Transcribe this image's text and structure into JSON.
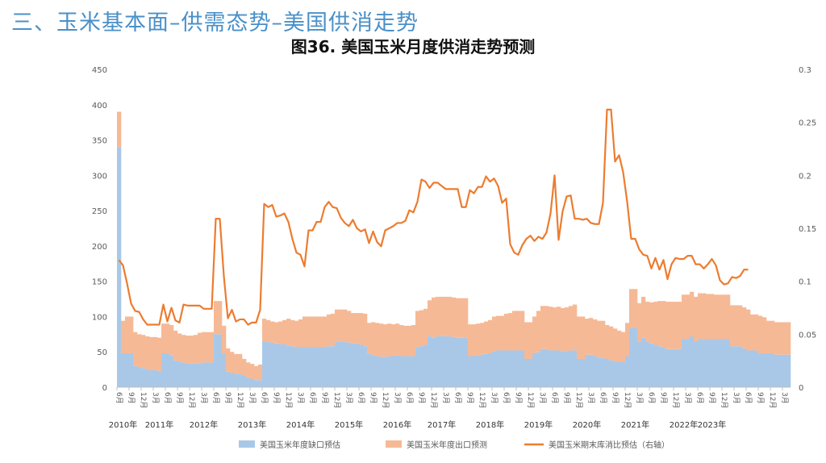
{
  "header": {
    "section_title": "三、玉米基本面–供需态势–美国供消走势"
  },
  "chart_data": {
    "type": "bar",
    "title": "图36. 美国玉米月度供消走势预测",
    "stacked": true,
    "y_left": {
      "ticks": [
        "0",
        "50",
        "100",
        "150",
        "200",
        "250",
        "300",
        "350",
        "400",
        "450"
      ],
      "ylim": [
        0,
        450
      ]
    },
    "y_right": {
      "ticks": [
        "0",
        "0.05",
        "0.1",
        "0.15",
        "0.2",
        "0.25",
        "0.3"
      ],
      "ylim": [
        0,
        0.3
      ]
    },
    "grid": false,
    "legend_position": "bottom",
    "colors": {
      "deficit": "#a9c8e8",
      "export": "#f6b995",
      "ratio": "#ec7c30"
    },
    "x_start": "2010-06",
    "x_month_ticks": [
      "6月",
      "9月",
      "12月",
      "3月",
      "6月",
      "9月",
      "12月",
      "3月",
      "6月",
      "9月",
      "12月",
      "3月",
      "6月",
      "9月",
      "12月",
      "3月",
      "6月",
      "9月",
      "12月",
      "3月",
      "6月",
      "9月",
      "12月",
      "3月",
      "6月",
      "9月",
      "12月",
      "3月",
      "6月",
      "9月",
      "12月",
      "3月",
      "6月",
      "9月",
      "12月",
      "3月",
      "6月",
      "9月",
      "12月",
      "3月",
      "6月",
      "9月",
      "12月",
      "3月",
      "6月",
      "9月",
      "12月",
      "3月",
      "6月",
      "9月",
      "12月",
      "3月",
      "6月",
      "9月",
      "12月",
      "3月"
    ],
    "year_labels": [
      {
        "label": "2010年",
        "index": 1
      },
      {
        "label": "2011年",
        "index": 10
      },
      {
        "label": "2012年",
        "index": 21
      },
      {
        "label": "2013年",
        "index": 33
      },
      {
        "label": "2014年",
        "index": 45
      },
      {
        "label": "2015年",
        "index": 57
      },
      {
        "label": "2016年",
        "index": 69
      },
      {
        "label": "2017年",
        "index": 80
      },
      {
        "label": "2018年",
        "index": 92
      },
      {
        "label": "2019年",
        "index": 104
      },
      {
        "label": "2020年",
        "index": 116
      },
      {
        "label": "2021年",
        "index": 128
      },
      {
        "label": "2022年",
        "index": 140
      },
      {
        "label": "2023年",
        "index": 147
      }
    ],
    "series": [
      {
        "name": "美国玉米年度缺口预估",
        "axis": "left",
        "values": [
          340,
          48,
          48,
          48,
          30,
          28,
          27,
          25,
          24,
          24,
          23,
          48,
          48,
          45,
          38,
          36,
          35,
          34,
          34,
          34,
          34,
          35,
          35,
          35,
          75,
          75,
          48,
          22,
          20,
          19,
          19,
          16,
          14,
          12,
          10,
          10,
          65,
          64,
          63,
          62,
          61,
          61,
          59,
          58,
          57,
          57,
          57,
          57,
          57,
          57,
          57,
          57,
          58,
          58,
          64,
          64,
          64,
          63,
          62,
          62,
          60,
          58,
          47,
          45,
          44,
          43,
          43,
          44,
          44,
          45,
          44,
          44,
          44,
          44,
          56,
          58,
          60,
          72,
          70,
          72,
          72,
          72,
          72,
          71,
          70,
          70,
          70,
          44,
          44,
          45,
          46,
          47,
          48,
          51,
          52,
          52,
          52,
          52,
          52,
          52,
          52,
          40,
          40,
          48,
          50,
          54,
          54,
          52,
          52,
          52,
          51,
          51,
          52,
          52,
          40,
          40,
          46,
          46,
          44,
          42,
          42,
          40,
          38,
          36,
          36,
          36,
          44,
          84,
          84,
          64,
          70,
          64,
          62,
          60,
          58,
          56,
          54,
          54,
          54,
          54,
          68,
          68,
          72,
          65,
          68,
          68,
          68,
          68,
          68,
          68,
          68,
          68,
          58,
          58,
          58,
          55,
          52,
          52,
          52,
          48,
          48,
          48,
          48,
          46,
          46,
          46,
          46
        ]
      },
      {
        "name": "美国玉米年度出口预测",
        "axis": "left",
        "values": [
          50,
          46,
          52,
          52,
          48,
          47,
          47,
          47,
          47,
          47,
          47,
          42,
          42,
          43,
          42,
          40,
          39,
          39,
          39,
          40,
          43,
          43,
          43,
          43,
          47,
          47,
          39,
          33,
          30,
          28,
          28,
          24,
          21,
          21,
          20,
          22,
          32,
          31,
          30,
          30,
          32,
          34,
          38,
          37,
          37,
          39,
          43,
          43,
          43,
          43,
          43,
          43,
          45,
          46,
          46,
          46,
          46,
          45,
          43,
          43,
          45,
          46,
          44,
          47,
          47,
          47,
          46,
          46,
          45,
          45,
          44,
          43,
          43,
          44,
          52,
          51,
          51,
          51,
          57,
          56,
          56,
          56,
          56,
          56,
          56,
          56,
          56,
          45,
          45,
          45,
          45,
          46,
          47,
          49,
          49,
          49,
          52,
          53,
          56,
          56,
          56,
          52,
          52,
          52,
          58,
          61,
          61,
          62,
          61,
          62,
          61,
          62,
          63,
          65,
          60,
          60,
          51,
          52,
          52,
          52,
          52,
          48,
          48,
          47,
          44,
          42,
          47,
          55,
          55,
          55,
          58,
          57,
          58,
          61,
          64,
          66,
          67,
          67,
          67,
          67,
          63,
          63,
          63,
          63,
          65,
          65,
          64,
          64,
          63,
          63,
          63,
          63,
          58,
          58,
          58,
          58,
          58,
          51,
          51,
          53,
          51,
          46,
          46,
          46,
          46,
          46,
          46
        ]
      },
      {
        "name": "美国玉米期末库消比预估（右轴）",
        "axis": "right",
        "values": [
          0.12,
          0.115,
          0.098,
          0.079,
          0.072,
          0.071,
          0.064,
          0.059,
          0.059,
          0.059,
          0.059,
          0.078,
          0.062,
          0.075,
          0.063,
          0.061,
          0.078,
          0.077,
          0.077,
          0.077,
          0.077,
          0.074,
          0.074,
          0.074,
          0.159,
          0.159,
          0.105,
          0.065,
          0.073,
          0.062,
          0.064,
          0.064,
          0.059,
          0.061,
          0.061,
          0.073,
          0.173,
          0.17,
          0.172,
          0.161,
          0.162,
          0.164,
          0.156,
          0.14,
          0.127,
          0.125,
          0.114,
          0.148,
          0.148,
          0.156,
          0.156,
          0.17,
          0.175,
          0.17,
          0.169,
          0.16,
          0.155,
          0.152,
          0.158,
          0.15,
          0.147,
          0.149,
          0.136,
          0.147,
          0.137,
          0.133,
          0.148,
          0.15,
          0.152,
          0.155,
          0.155,
          0.157,
          0.167,
          0.165,
          0.175,
          0.196,
          0.194,
          0.188,
          0.193,
          0.193,
          0.19,
          0.187,
          0.187,
          0.187,
          0.187,
          0.17,
          0.17,
          0.186,
          0.183,
          0.189,
          0.189,
          0.199,
          0.194,
          0.197,
          0.19,
          0.174,
          0.178,
          0.135,
          0.127,
          0.125,
          0.134,
          0.14,
          0.143,
          0.138,
          0.142,
          0.14,
          0.146,
          0.164,
          0.2,
          0.139,
          0.166,
          0.18,
          0.181,
          0.159,
          0.159,
          0.158,
          0.159,
          0.155,
          0.154,
          0.154,
          0.174,
          0.262,
          0.262,
          0.213,
          0.219,
          0.203,
          0.175,
          0.14,
          0.14,
          0.13,
          0.125,
          0.124,
          0.112,
          0.122,
          0.111,
          0.12,
          0.102,
          0.116,
          0.122,
          0.121,
          0.121,
          0.124,
          0.124,
          0.116,
          0.116,
          0.112,
          0.116,
          0.121,
          0.115,
          0.101,
          0.097,
          0.098,
          0.104,
          0.103,
          0.105,
          0.111,
          0.111
        ]
      }
    ]
  }
}
